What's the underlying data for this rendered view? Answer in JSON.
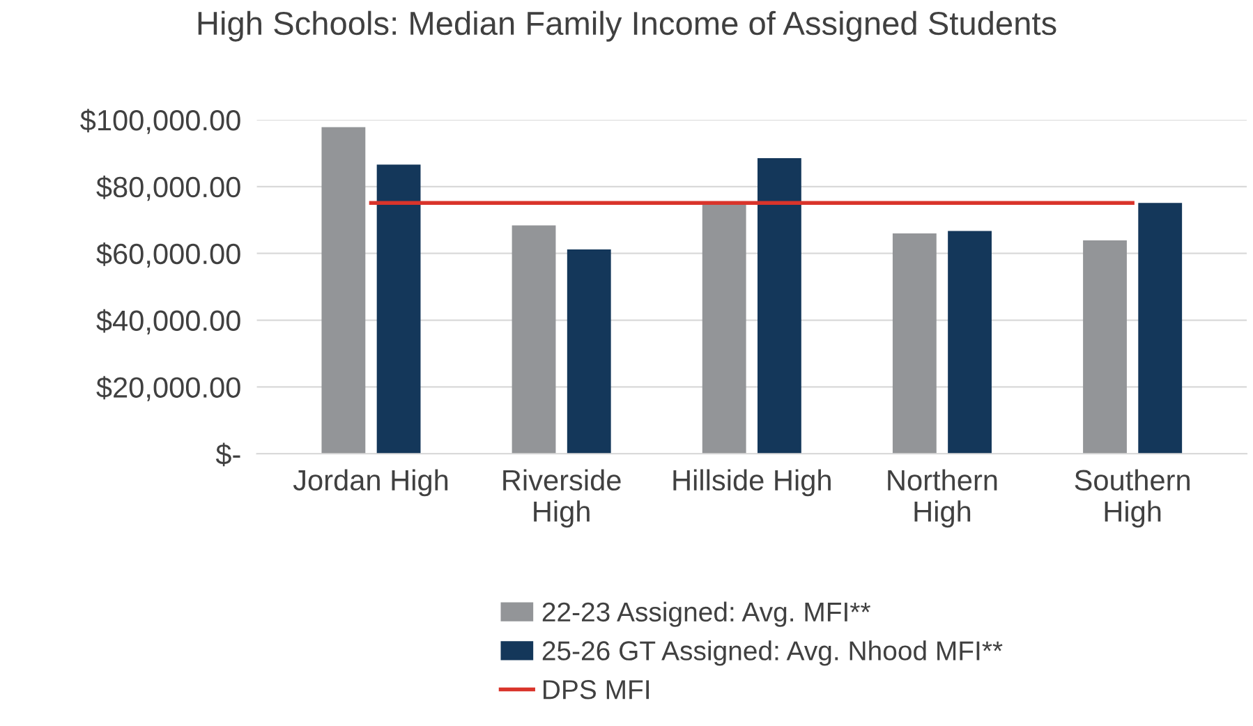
{
  "chart_data": {
    "type": "bar",
    "title": "High Schools: Median Family Income of Assigned Students",
    "categories": [
      "Jordan High",
      "Riverside\nHigh",
      "Hillside High",
      "Northern\nHigh",
      "Southern\nHigh"
    ],
    "series": [
      {
        "name": "22-23 Assigned: Avg. MFI**",
        "color": "#939598",
        "values": [
          97800,
          68400,
          75600,
          66000,
          63900
        ]
      },
      {
        "name": "25-26 GT Assigned: Avg. Nhood MFI**",
        "color": "#14375a",
        "values": [
          86600,
          61200,
          88500,
          66700,
          75100
        ]
      },
      {
        "name": "DPS MFI",
        "type": "line",
        "color": "#d9342b",
        "values": [
          75100,
          75100,
          75100,
          75100,
          75100
        ]
      }
    ],
    "ylim": [
      0,
      100000
    ],
    "yticks": [
      {
        "value": 0,
        "label": "$-"
      },
      {
        "value": 20000,
        "label": "$20,000.00"
      },
      {
        "value": 40000,
        "label": "$40,000.00"
      },
      {
        "value": 60000,
        "label": "$60,000.00"
      },
      {
        "value": 80000,
        "label": "$80,000.00"
      },
      {
        "value": 100000,
        "label": "$100,000.00"
      }
    ],
    "grid": "y",
    "legend": "bottom"
  }
}
